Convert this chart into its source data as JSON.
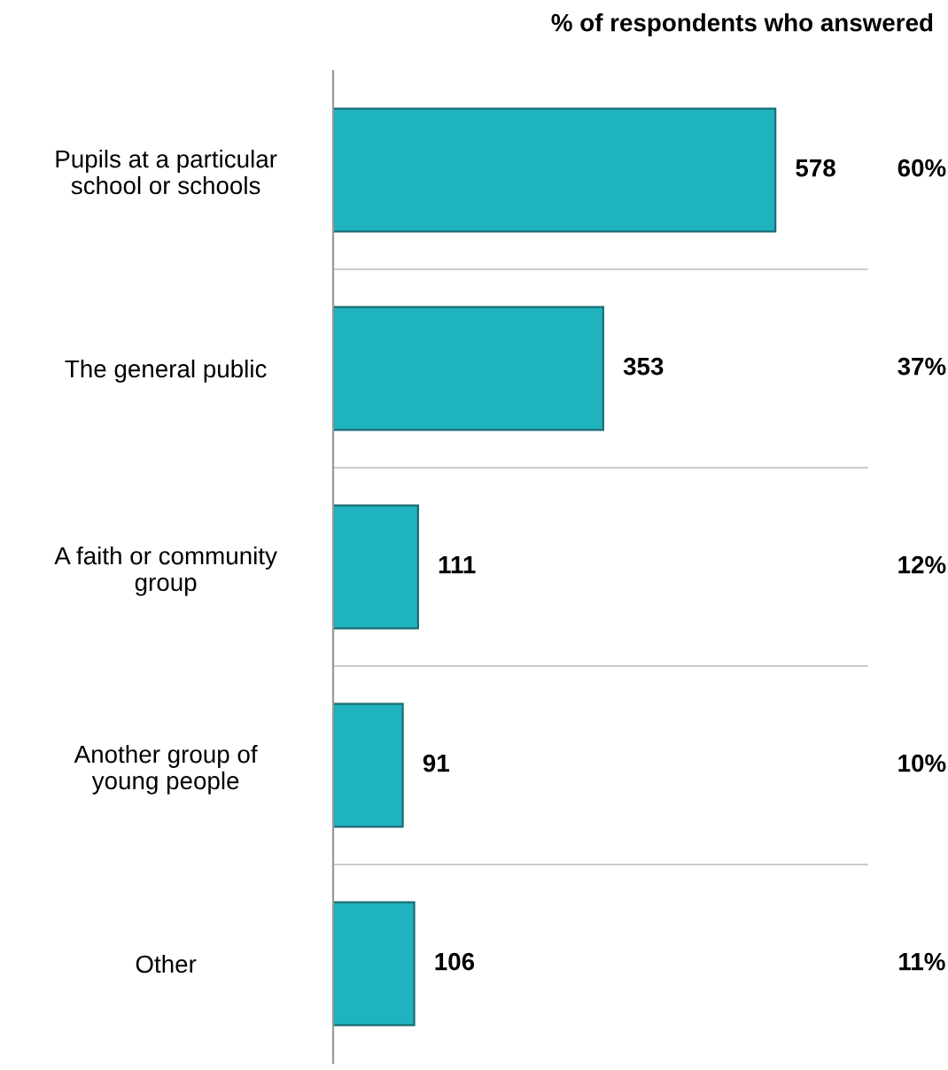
{
  "chart_data": {
    "type": "bar",
    "orientation": "horizontal",
    "categories": [
      "Pupils at a particular\nschool or schools",
      "The general public",
      "A faith or community\ngroup",
      "Another group of\nyoung people",
      "Other"
    ],
    "values": [
      578,
      353,
      111,
      91,
      106
    ],
    "color": "#1fb3bf",
    "data_labels": true,
    "grid": "y",
    "annotations": [
      "% of respondents who answered",
      "60%",
      "37%",
      "12%",
      "10%",
      "11%"
    ]
  }
}
